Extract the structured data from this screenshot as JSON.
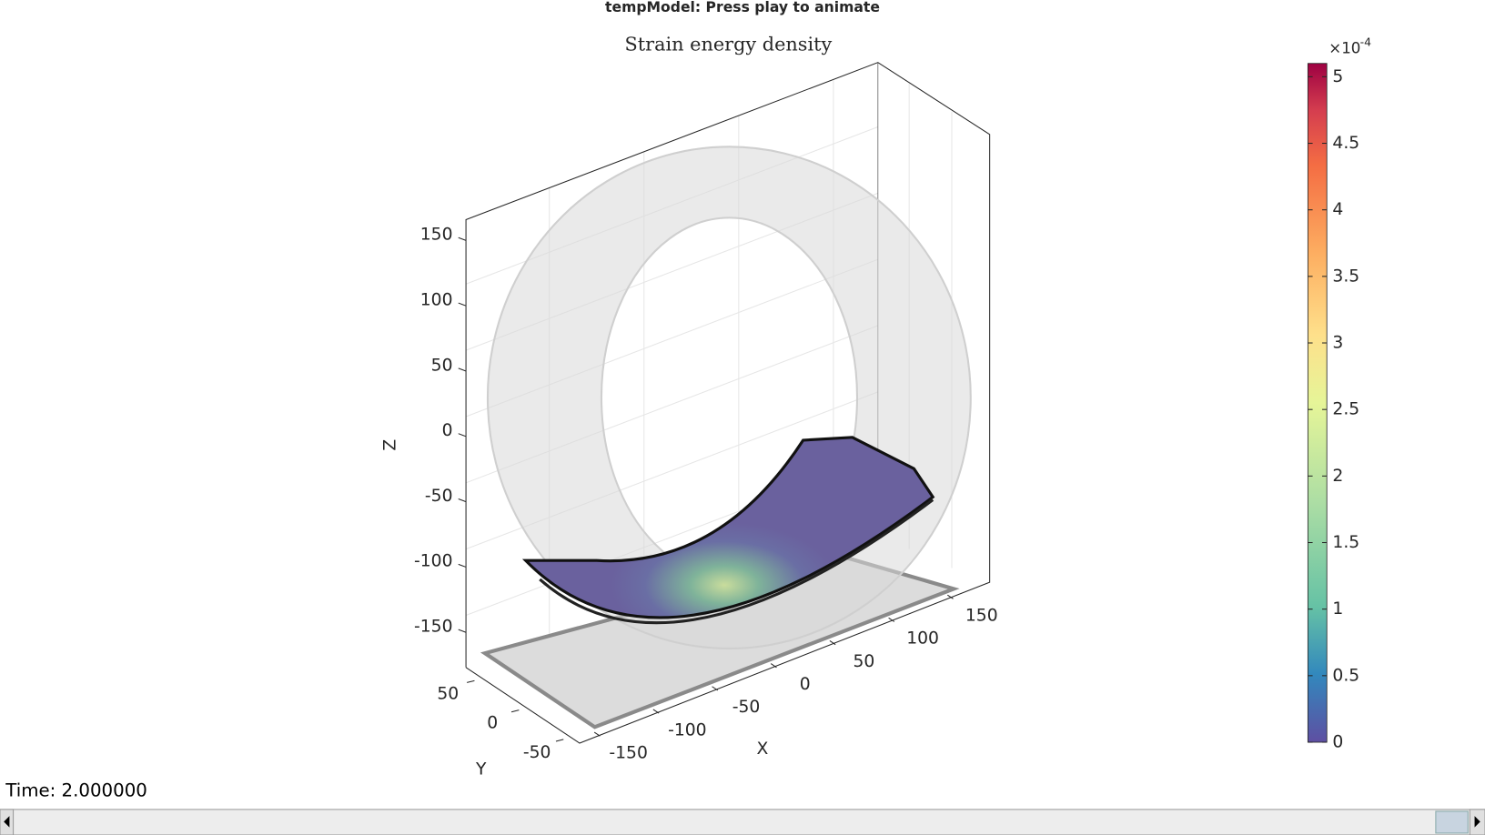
{
  "window": {
    "title": "tempModel: Press play to animate"
  },
  "plot": {
    "title": "Strain energy density",
    "x_axis": {
      "label": "X",
      "ticks": [
        -150,
        -100,
        -50,
        0,
        50,
        100,
        150
      ]
    },
    "y_axis": {
      "label": "Y",
      "ticks": [
        -50,
        0,
        50
      ]
    },
    "z_axis": {
      "label": "Z",
      "ticks": [
        -150,
        -100,
        -50,
        0,
        50,
        100,
        150
      ]
    },
    "colorbar": {
      "multiplier": "×10",
      "exponent": "-4",
      "lim": [
        0,
        5.1
      ],
      "ticks": [
        0,
        0.5,
        1,
        1.5,
        2,
        2.5,
        3,
        3.5,
        4,
        4.5,
        5
      ]
    }
  },
  "status": {
    "time": "Time: 2.000000"
  }
}
